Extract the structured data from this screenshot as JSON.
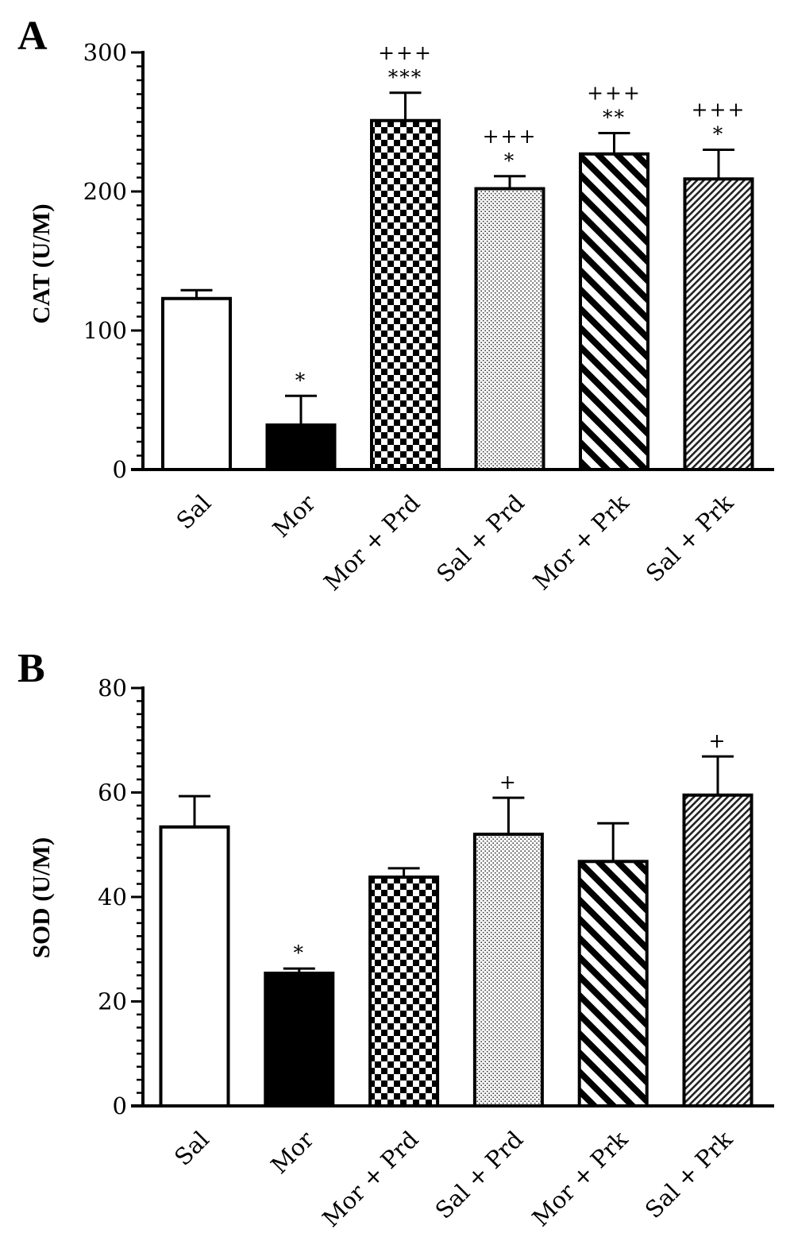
{
  "chart_data": [
    {
      "panel_label": "A",
      "type": "bar",
      "ylabel": "CAT (U/M)",
      "categories": [
        "Sal",
        "Mor",
        "Mor + Prd",
        "Sal + Prd",
        "Mor + Prk",
        "Sal + Prk"
      ],
      "values": [
        123,
        32,
        251,
        202,
        227,
        209
      ],
      "errors": [
        6,
        21,
        20,
        9,
        15,
        21
      ],
      "annotations": [
        [],
        [
          "*"
        ],
        [
          "+++",
          "***"
        ],
        [
          "+++",
          "*"
        ],
        [
          "+++",
          "**"
        ],
        [
          "+++",
          "*"
        ]
      ],
      "bar_fills": [
        "white",
        "black",
        "checkerboard",
        "dotted",
        "diagonal-stripes",
        "fine-hatch"
      ],
      "ylim": [
        0,
        300
      ],
      "yticks": [
        0,
        100,
        200,
        300
      ],
      "y_minor_tick_step": 10,
      "grid": false
    },
    {
      "panel_label": "B",
      "type": "bar",
      "ylabel": "SOD (U/M)",
      "categories": [
        "Sal",
        "Mor",
        "Mor + Prd",
        "Sal + Prd",
        "Mor + Prk",
        "Sal + Prk"
      ],
      "values": [
        53.4,
        25.4,
        43.8,
        52,
        46.8,
        59.5
      ],
      "errors": [
        5.9,
        0.9,
        1.7,
        7.0,
        7.3,
        7.4
      ],
      "annotations": [
        [],
        [
          "*"
        ],
        [],
        [
          "+"
        ],
        [],
        [
          "+"
        ]
      ],
      "bar_fills": [
        "white",
        "black",
        "checkerboard",
        "dotted",
        "diagonal-stripes",
        "fine-hatch"
      ],
      "ylim": [
        0,
        80
      ],
      "yticks": [
        0,
        20,
        40,
        60,
        80
      ],
      "y_minor_tick_step": 2.5,
      "grid": false
    }
  ],
  "colors": {
    "ink": "#000000",
    "background": "#ffffff"
  }
}
